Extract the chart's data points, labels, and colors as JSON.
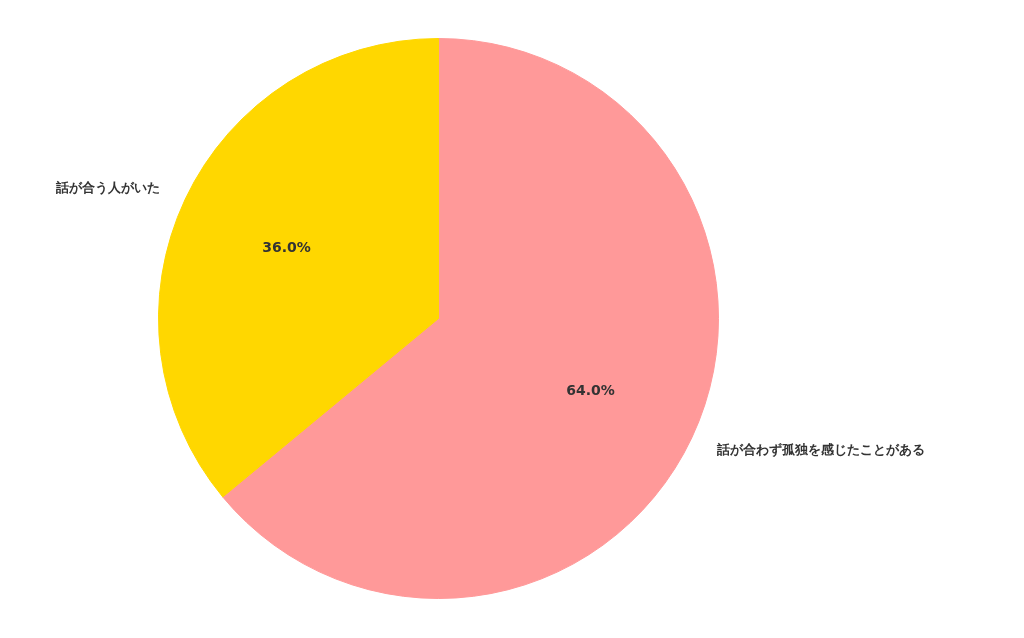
{
  "chart_data": {
    "type": "pie",
    "categories": [
      "話が合わず孤独を感じたことがある",
      "話が合う人がいた"
    ],
    "values": [
      64.0,
      36.0
    ],
    "colors": [
      "#ff9999",
      "#ffd700"
    ],
    "value_labels": [
      "64.0%",
      "36.0%"
    ]
  }
}
